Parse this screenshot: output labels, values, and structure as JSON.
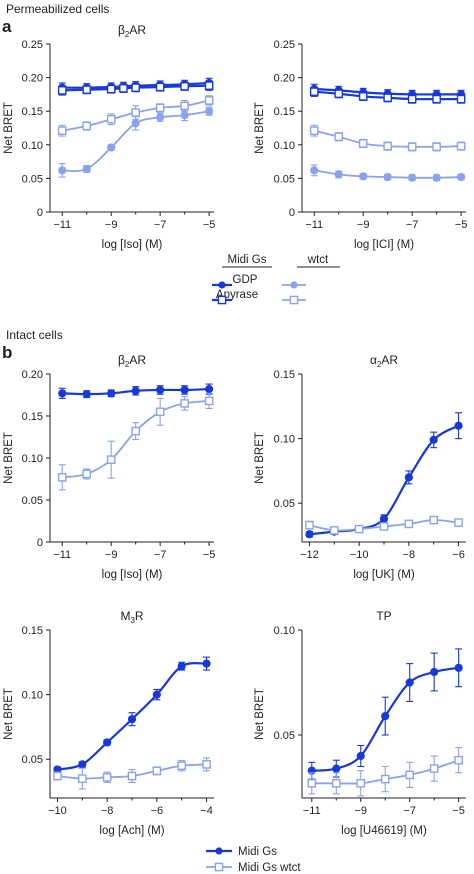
{
  "colors": {
    "dark": "#1838d8",
    "light": "#8aa3ec",
    "axis": "#231f20"
  },
  "sections": [
    {
      "letter": "a",
      "title": "Permeabilized cells"
    },
    {
      "letter": "b",
      "title": "Intact cells"
    }
  ],
  "legend_a": {
    "col1": "Midi Gs",
    "col2": "wtct",
    "rows": [
      "GDP",
      "Apyrase"
    ]
  },
  "legend_b": {
    "items": [
      "Midi Gs",
      "Midi Gs wtct"
    ]
  },
  "chart_data": [
    {
      "id": "a-left",
      "type": "line",
      "title": "β2AR",
      "xlabel": "log [Iso] (M)",
      "ylabel": "Net BRET",
      "xlim": [
        -11.5,
        -4.8
      ],
      "ylim": [
        0,
        0.25
      ],
      "xticks": [
        -11,
        -9,
        -7,
        -5
      ],
      "yticks": [
        0,
        0.05,
        0.1,
        0.15,
        0.2,
        0.25
      ],
      "series": [
        {
          "name": "Midi Gs GDP",
          "style": "dark-filled",
          "x": [
            -11,
            -10,
            -9,
            -8.5,
            -8,
            -7,
            -6,
            -5
          ],
          "y": [
            0.185,
            0.185,
            0.186,
            0.187,
            0.188,
            0.189,
            0.19,
            0.192
          ],
          "err": [
            0.007,
            0.006,
            0.006,
            0.006,
            0.006,
            0.006,
            0.006,
            0.007
          ]
        },
        {
          "name": "Midi Gs Apyrase",
          "style": "dark-open",
          "x": [
            -11,
            -10,
            -9,
            -8.5,
            -8,
            -7,
            -6,
            -5
          ],
          "y": [
            0.181,
            0.182,
            0.183,
            0.184,
            0.185,
            0.186,
            0.187,
            0.188
          ],
          "err": [
            0.007,
            0.006,
            0.006,
            0.006,
            0.006,
            0.006,
            0.006,
            0.007
          ]
        },
        {
          "name": "wtct GDP",
          "style": "light-filled",
          "x": [
            -11,
            -10,
            -9,
            -8,
            -7,
            -6,
            -5
          ],
          "y": [
            0.062,
            0.064,
            0.096,
            0.132,
            0.141,
            0.144,
            0.15
          ],
          "err": [
            0.01,
            0.005,
            0.004,
            0.01,
            0.006,
            0.008,
            0.006
          ]
        },
        {
          "name": "wtct Apyrase",
          "style": "light-open",
          "x": [
            -11,
            -10,
            -9,
            -8,
            -7,
            -6,
            -5
          ],
          "y": [
            0.121,
            0.128,
            0.138,
            0.148,
            0.155,
            0.158,
            0.166
          ],
          "err": [
            0.008,
            0.006,
            0.008,
            0.01,
            0.006,
            0.008,
            0.007
          ]
        }
      ]
    },
    {
      "id": "a-right",
      "type": "line",
      "title": "",
      "xlabel": "log [ICI] (M)",
      "ylabel": "Net BRET",
      "xlim": [
        -11.5,
        -4.8
      ],
      "ylim": [
        0,
        0.25
      ],
      "xticks": [
        -11,
        -9,
        -7,
        -5
      ],
      "yticks": [
        0,
        0.05,
        0.1,
        0.15,
        0.2,
        0.25
      ],
      "series": [
        {
          "name": "Midi Gs GDP",
          "style": "dark-filled",
          "x": [
            -11,
            -10,
            -9,
            -8,
            -7,
            -6,
            -5
          ],
          "y": [
            0.183,
            0.181,
            0.178,
            0.176,
            0.175,
            0.175,
            0.175
          ],
          "err": [
            0.007,
            0.006,
            0.006,
            0.006,
            0.006,
            0.006,
            0.006
          ]
        },
        {
          "name": "Midi Gs Apyrase",
          "style": "dark-open",
          "x": [
            -11,
            -10,
            -9,
            -8,
            -7,
            -6,
            -5
          ],
          "y": [
            0.179,
            0.176,
            0.172,
            0.17,
            0.168,
            0.168,
            0.168
          ],
          "err": [
            0.007,
            0.006,
            0.006,
            0.006,
            0.006,
            0.006,
            0.006
          ]
        },
        {
          "name": "wtct GDP",
          "style": "light-filled",
          "x": [
            -11,
            -10,
            -9,
            -8,
            -7,
            -6,
            -5
          ],
          "y": [
            0.062,
            0.056,
            0.053,
            0.052,
            0.051,
            0.051,
            0.052
          ],
          "err": [
            0.008,
            0.005,
            0.004,
            0.004,
            0.004,
            0.004,
            0.004
          ]
        },
        {
          "name": "wtct Apyrase",
          "style": "light-open",
          "x": [
            -11,
            -10,
            -9,
            -8,
            -7,
            -6,
            -5
          ],
          "y": [
            0.121,
            0.112,
            0.102,
            0.098,
            0.097,
            0.097,
            0.098
          ],
          "err": [
            0.008,
            0.006,
            0.006,
            0.006,
            0.006,
            0.006,
            0.006
          ]
        }
      ]
    },
    {
      "id": "b-tl",
      "type": "line",
      "title": "β2AR",
      "xlabel": "log [Iso] (M)",
      "ylabel": "Net BRET",
      "xlim": [
        -11.5,
        -4.8
      ],
      "ylim": [
        0,
        0.2
      ],
      "xticks": [
        -11,
        -9,
        -7,
        -5
      ],
      "yticks": [
        0,
        0.05,
        0.1,
        0.15,
        0.2
      ],
      "series": [
        {
          "name": "Midi Gs",
          "style": "dark-filled",
          "x": [
            -11,
            -10,
            -9,
            -8,
            -7,
            -6,
            -5
          ],
          "y": [
            0.177,
            0.176,
            0.177,
            0.18,
            0.181,
            0.181,
            0.182
          ],
          "err": [
            0.006,
            0.004,
            0.004,
            0.005,
            0.005,
            0.005,
            0.006
          ]
        },
        {
          "name": "Midi Gs wtct",
          "style": "light-open",
          "x": [
            -11,
            -10,
            -9,
            -8,
            -7,
            -6,
            -5
          ],
          "y": [
            0.077,
            0.081,
            0.098,
            0.132,
            0.155,
            0.165,
            0.168
          ],
          "err": [
            0.015,
            0.006,
            0.022,
            0.01,
            0.016,
            0.008,
            0.009
          ]
        }
      ]
    },
    {
      "id": "b-tr",
      "type": "line",
      "title": "α2AR",
      "xlabel": "log [UK] (M)",
      "ylabel": "Net BRET",
      "xlim": [
        -12.3,
        -5.7
      ],
      "ylim": [
        0.02,
        0.15
      ],
      "xticks": [
        -12,
        -10,
        -8,
        -6
      ],
      "yticks": [
        0.05,
        0.1,
        0.15
      ],
      "series": [
        {
          "name": "Midi Gs",
          "style": "dark-filled",
          "x": [
            -12,
            -11,
            -10,
            -9,
            -8,
            -7,
            -6
          ],
          "y": [
            0.026,
            0.028,
            0.03,
            0.038,
            0.07,
            0.099,
            0.11
          ],
          "err": [
            0.002,
            0.002,
            0.002,
            0.003,
            0.005,
            0.006,
            0.01
          ]
        },
        {
          "name": "Midi Gs wtct",
          "style": "light-open",
          "x": [
            -12,
            -11,
            -10,
            -9,
            -8,
            -7,
            -6
          ],
          "y": [
            0.033,
            0.029,
            0.03,
            0.032,
            0.034,
            0.037,
            0.035
          ],
          "err": [
            0.003,
            0.002,
            0.002,
            0.002,
            0.002,
            0.002,
            0.002
          ]
        }
      ]
    },
    {
      "id": "b-bl",
      "type": "line",
      "title": "M3R",
      "xlabel": "log [Ach] (M)",
      "ylabel": "Net BRET",
      "xlim": [
        -10.3,
        -3.7
      ],
      "ylim": [
        0.02,
        0.15
      ],
      "xticks": [
        -10,
        -8,
        -6,
        -4
      ],
      "yticks": [
        0.05,
        0.1,
        0.15
      ],
      "series": [
        {
          "name": "Midi Gs",
          "style": "dark-filled",
          "x": [
            -10,
            -9,
            -8,
            -7,
            -6,
            -5,
            -4
          ],
          "y": [
            0.042,
            0.046,
            0.063,
            0.081,
            0.1,
            0.122,
            0.124
          ],
          "err": [
            0.002,
            0.002,
            0.002,
            0.005,
            0.004,
            0.003,
            0.005
          ]
        },
        {
          "name": "Midi Gs wtct",
          "style": "light-open",
          "x": [
            -10,
            -9,
            -8,
            -7,
            -6,
            -5,
            -4
          ],
          "y": [
            0.037,
            0.035,
            0.036,
            0.037,
            0.041,
            0.045,
            0.046
          ],
          "err": [
            0.003,
            0.008,
            0.004,
            0.005,
            0.003,
            0.004,
            0.005
          ]
        }
      ]
    },
    {
      "id": "b-br",
      "type": "line",
      "title": "TP",
      "xlabel": "log [U46619] (M)",
      "ylabel": "Net BRET",
      "xlim": [
        -11.4,
        -4.7
      ],
      "ylim": [
        0.02,
        0.1
      ],
      "xticks": [
        -11,
        -9,
        -7,
        -5
      ],
      "yticks": [
        0.05,
        0.1
      ],
      "series": [
        {
          "name": "Midi Gs",
          "style": "dark-filled",
          "x": [
            -11,
            -10,
            -9,
            -8,
            -7,
            -6,
            -5
          ],
          "y": [
            0.033,
            0.034,
            0.04,
            0.059,
            0.075,
            0.08,
            0.082
          ],
          "err": [
            0.004,
            0.004,
            0.005,
            0.009,
            0.009,
            0.009,
            0.009
          ]
        },
        {
          "name": "Midi Gs wtct",
          "style": "light-open",
          "x": [
            -11,
            -10,
            -9,
            -8,
            -7,
            -6,
            -5
          ],
          "y": [
            0.027,
            0.027,
            0.027,
            0.029,
            0.031,
            0.034,
            0.038
          ],
          "err": [
            0.005,
            0.005,
            0.006,
            0.006,
            0.006,
            0.006,
            0.006
          ]
        }
      ]
    }
  ]
}
